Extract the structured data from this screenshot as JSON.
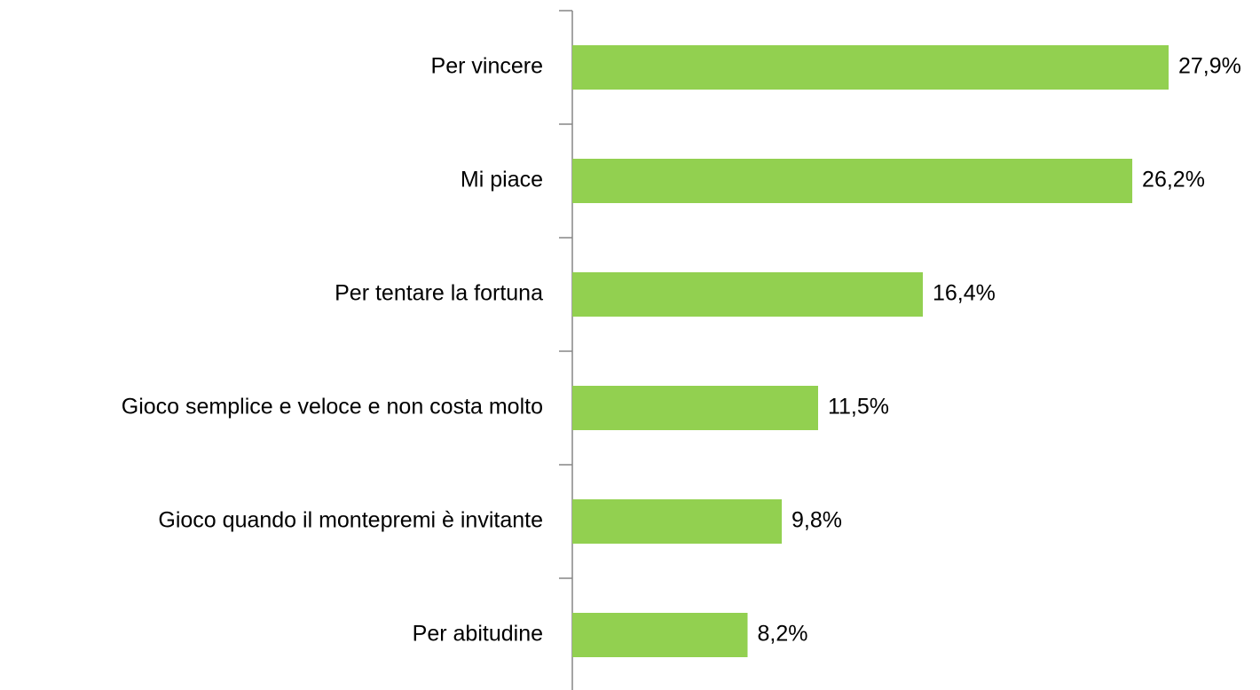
{
  "chart_data": {
    "type": "bar",
    "orientation": "horizontal",
    "categories": [
      "Per vincere",
      "Mi piace",
      "Per tentare la fortuna",
      "Gioco semplice e veloce e non costa molto",
      "Gioco quando il montepremi è invitante",
      "Per abitudine"
    ],
    "values": [
      27.9,
      26.2,
      16.4,
      11.5,
      9.8,
      8.2
    ],
    "value_labels": [
      "27,9%",
      "26,2%",
      "16,4%",
      "11,5%",
      "9,8%",
      "8,2%"
    ],
    "color": "#92d050"
  }
}
